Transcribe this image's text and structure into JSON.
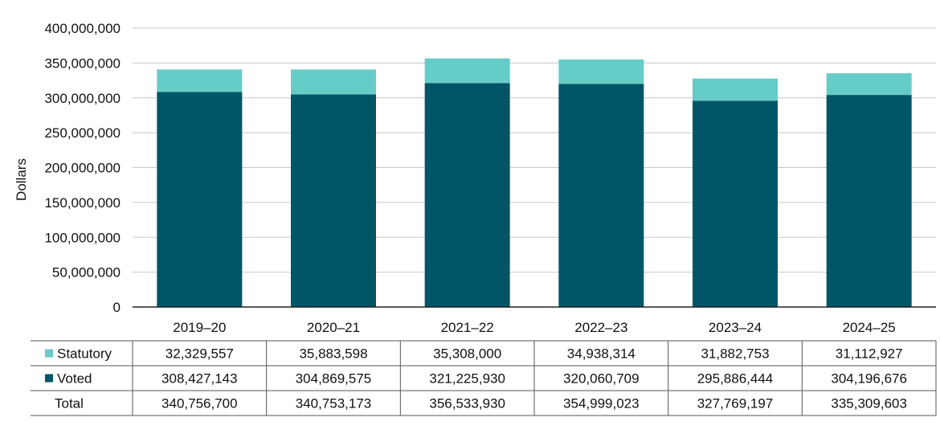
{
  "chart_data": {
    "type": "bar",
    "stacked": true,
    "ylabel": "Dollars",
    "xlabel": "",
    "ylim": [
      0,
      400000000
    ],
    "yticks": [
      0,
      50000000,
      100000000,
      150000000,
      200000000,
      250000000,
      300000000,
      350000000,
      400000000
    ],
    "ytick_labels": [
      "0",
      "50,000,000",
      "100,000,000",
      "150,000,000",
      "200,000,000",
      "250,000,000",
      "300,000,000",
      "350,000,000",
      "400,000,000"
    ],
    "grid": true,
    "categories": [
      "2019–20",
      "2020–21",
      "2021–22",
      "2022–23",
      "2023–24",
      "2024–25"
    ],
    "series": [
      {
        "name": "Voted",
        "color": "#005566",
        "values": [
          308427143,
          304869575,
          321225930,
          320060709,
          295886444,
          304196676
        ]
      },
      {
        "name": "Statutory",
        "color": "#66ccc7",
        "values": [
          32329557,
          35883598,
          35308000,
          34938314,
          31882753,
          31112927
        ]
      }
    ],
    "table": {
      "rows": [
        {
          "label": "Statutory",
          "swatch": "#66ccc7",
          "cells": [
            "32,329,557",
            "35,883,598",
            "35,308,000",
            "34,938,314",
            "31,882,753",
            "31,112,927"
          ]
        },
        {
          "label": "Voted",
          "swatch": "#005566",
          "cells": [
            "308,427,143",
            "304,869,575",
            "321,225,930",
            "320,060,709",
            "295,886,444",
            "304,196,676"
          ]
        },
        {
          "label": "Total",
          "swatch": null,
          "cells": [
            "340,756,700",
            "340,753,173",
            "356,533,930",
            "354,999,023",
            "327,769,197",
            "335,309,603"
          ]
        }
      ]
    }
  }
}
